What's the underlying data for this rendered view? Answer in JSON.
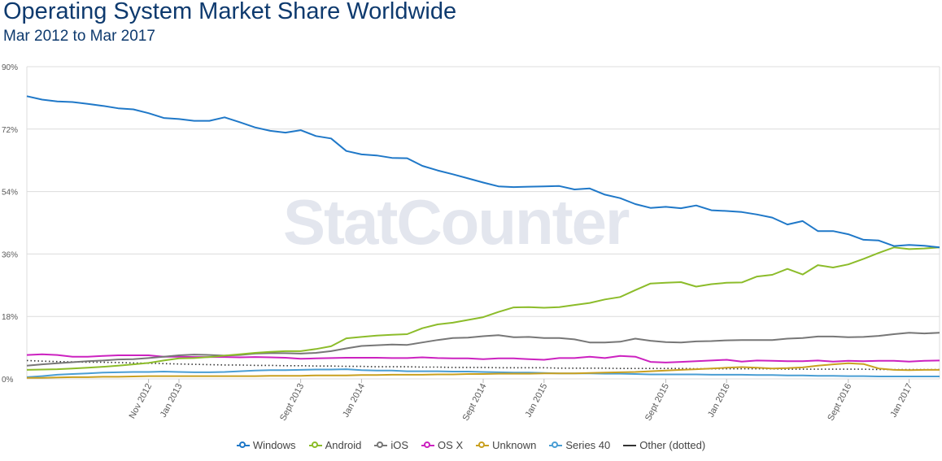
{
  "title": "Operating System Market Share Worldwide",
  "subtitle": "Mar 2012 to Mar 2017",
  "watermark": "StatCounter",
  "chart_data": {
    "type": "line",
    "title": "Operating System Market Share Worldwide",
    "subtitle": "Mar 2012 to Mar 2017",
    "xlabel": "",
    "ylabel": "",
    "ylim": [
      0,
      90
    ],
    "yticks": [
      "0%",
      "18%",
      "36%",
      "54%",
      "72%",
      "90%"
    ],
    "xtick_labels": [
      {
        "label": "Nov 2012",
        "index": 8
      },
      {
        "label": "Jan 2013",
        "index": 10
      },
      {
        "label": "Sept 2013",
        "index": 18
      },
      {
        "label": "Jan 2014",
        "index": 22
      },
      {
        "label": "Sept 2014",
        "index": 30
      },
      {
        "label": "Jan 2015",
        "index": 34
      },
      {
        "label": "Sept 2015",
        "index": 42
      },
      {
        "label": "Jan 2016",
        "index": 46
      },
      {
        "label": "Sept 2016",
        "index": 54
      },
      {
        "label": "Jan 2017",
        "index": 58
      }
    ],
    "grid": true,
    "legend_position": "bottom",
    "series": [
      {
        "name": "Windows",
        "color": "#1f78c8",
        "dotted": false,
        "values": [
          81.5,
          80.5,
          80.0,
          79.8,
          79.3,
          78.7,
          78.0,
          77.7,
          76.6,
          75.2,
          74.9,
          74.4,
          74.4,
          75.4,
          74.0,
          72.5,
          71.5,
          71.0,
          71.7,
          70.0,
          69.3,
          65.7,
          64.7,
          64.4,
          63.7,
          63.6,
          61.4,
          60.1,
          59.0,
          57.8,
          56.6,
          55.5,
          55.3,
          55.4,
          55.5,
          55.6,
          54.6,
          54.9,
          53.1,
          52.1,
          50.4,
          49.3,
          49.6,
          49.2,
          50.0,
          48.6,
          48.4,
          48.1,
          47.4,
          46.5,
          44.5,
          45.5,
          42.6,
          42.6,
          41.7,
          40.1,
          39.9,
          38.3,
          38.6,
          38.4,
          37.9
        ]
      },
      {
        "name": "Android",
        "color": "#8cbc2a",
        "dotted": false,
        "values": [
          2.6,
          2.7,
          2.8,
          3.0,
          3.2,
          3.5,
          3.8,
          4.2,
          4.6,
          5.3,
          5.9,
          6.0,
          6.3,
          6.7,
          7.1,
          7.5,
          7.8,
          8.0,
          8.0,
          8.6,
          9.4,
          11.7,
          12.1,
          12.5,
          12.7,
          12.9,
          14.6,
          15.7,
          16.2,
          17.0,
          17.8,
          19.3,
          20.6,
          20.7,
          20.5,
          20.7,
          21.3,
          21.9,
          22.9,
          23.6,
          25.6,
          27.5,
          27.7,
          27.9,
          26.6,
          27.3,
          27.7,
          27.8,
          29.5,
          30.0,
          31.7,
          30.1,
          32.8,
          32.1,
          33.0,
          34.6,
          36.3,
          37.9,
          37.4,
          37.6,
          37.9
        ]
      },
      {
        "name": "iOS",
        "color": "#777777",
        "dotted": false,
        "values": [
          3.8,
          4.2,
          4.5,
          4.8,
          5.1,
          5.3,
          5.6,
          5.7,
          6.0,
          6.4,
          6.8,
          7.0,
          6.9,
          6.7,
          6.9,
          7.3,
          7.4,
          7.4,
          7.3,
          7.5,
          8.0,
          8.8,
          9.5,
          9.7,
          9.9,
          9.8,
          10.5,
          11.2,
          11.8,
          11.9,
          12.3,
          12.6,
          12.0,
          12.1,
          11.8,
          11.8,
          11.4,
          10.5,
          10.5,
          10.7,
          11.6,
          11.0,
          10.6,
          10.5,
          10.8,
          10.9,
          11.1,
          11.2,
          11.2,
          11.2,
          11.6,
          11.8,
          12.2,
          12.2,
          12.0,
          12.1,
          12.4,
          12.9,
          13.3,
          13.1,
          13.3
        ]
      },
      {
        "name": "OS X",
        "color": "#cc22c0",
        "dotted": false,
        "values": [
          6.9,
          7.1,
          6.9,
          6.4,
          6.4,
          6.6,
          6.8,
          6.8,
          6.8,
          6.4,
          6.4,
          6.3,
          6.3,
          6.3,
          6.2,
          6.3,
          6.2,
          6.1,
          5.8,
          5.9,
          6.0,
          6.1,
          6.1,
          6.1,
          6.0,
          6.0,
          6.2,
          6.0,
          5.9,
          5.9,
          5.7,
          5.9,
          5.9,
          5.7,
          5.5,
          6.0,
          6.0,
          6.4,
          6.0,
          6.6,
          6.4,
          4.9,
          4.7,
          4.9,
          5.1,
          5.3,
          5.5,
          5.0,
          5.3,
          5.2,
          5.1,
          5.1,
          5.3,
          5.0,
          5.2,
          5.1,
          5.2,
          5.2,
          5.0,
          5.2,
          5.3
        ]
      },
      {
        "name": "Unknown",
        "color": "#c9a020",
        "dotted": false,
        "values": [
          0.3,
          0.3,
          0.4,
          0.5,
          0.5,
          0.6,
          0.6,
          0.7,
          0.8,
          0.8,
          0.8,
          0.8,
          0.8,
          0.8,
          0.8,
          0.8,
          0.9,
          0.9,
          0.9,
          1.0,
          1.0,
          1.0,
          1.1,
          1.1,
          1.2,
          1.2,
          1.2,
          1.3,
          1.3,
          1.4,
          1.4,
          1.5,
          1.5,
          1.5,
          1.6,
          1.6,
          1.6,
          1.7,
          1.8,
          1.9,
          2.0,
          2.2,
          2.4,
          2.6,
          2.8,
          3.0,
          3.2,
          3.4,
          3.2,
          3.0,
          3.1,
          3.3,
          3.8,
          4.2,
          4.5,
          4.3,
          3.0,
          2.6,
          2.5,
          2.6,
          2.6
        ]
      },
      {
        "name": "Series 40",
        "color": "#4a9ed4",
        "dotted": false,
        "values": [
          0.5,
          0.8,
          1.2,
          1.4,
          1.6,
          1.8,
          1.9,
          2.0,
          2.0,
          2.1,
          2.0,
          1.9,
          1.9,
          2.0,
          2.2,
          2.4,
          2.5,
          2.5,
          2.6,
          2.7,
          2.7,
          2.8,
          2.5,
          2.4,
          2.4,
          2.2,
          2.2,
          2.2,
          2.1,
          2.1,
          2.0,
          1.9,
          1.8,
          1.8,
          1.7,
          1.6,
          1.6,
          1.6,
          1.5,
          1.5,
          1.4,
          1.3,
          1.3,
          1.3,
          1.3,
          1.2,
          1.2,
          1.2,
          1.1,
          1.1,
          1.0,
          1.0,
          0.9,
          0.9,
          0.8,
          0.8,
          0.7,
          0.7,
          0.7,
          0.7,
          0.7
        ]
      },
      {
        "name": "Other (dotted)",
        "color": "#333333",
        "dotted": true,
        "values": [
          5.3,
          5.1,
          5.0,
          4.9,
          4.8,
          4.8,
          4.7,
          4.6,
          4.5,
          4.4,
          4.3,
          4.2,
          4.1,
          4.0,
          4.0,
          3.9,
          3.9,
          3.8,
          3.8,
          3.7,
          3.7,
          3.6,
          3.6,
          3.5,
          3.5,
          3.5,
          3.4,
          3.4,
          3.3,
          3.3,
          3.3,
          3.2,
          3.2,
          3.2,
          3.2,
          3.1,
          3.1,
          3.1,
          3.1,
          3.0,
          3.0,
          3.0,
          3.0,
          3.0,
          2.9,
          2.9,
          2.9,
          2.9,
          2.9,
          2.9,
          2.8,
          2.8,
          2.8,
          2.8,
          2.8,
          2.8,
          2.7,
          2.7,
          2.7,
          2.7,
          2.7
        ]
      }
    ]
  }
}
